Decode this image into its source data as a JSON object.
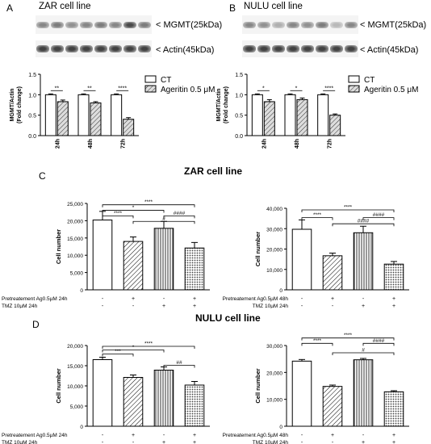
{
  "panels": {
    "A": {
      "letter": "A",
      "title": "ZAR cell line",
      "blot_labels": [
        "< MGMT(25kDa)",
        "< Actin(45kDa)"
      ],
      "mgmt_bands": [
        0.55,
        0.6,
        0.5,
        0.55,
        0.6,
        0.55,
        0.85,
        0.6
      ],
      "actin_bands": [
        0.9,
        0.9,
        0.9,
        0.9,
        0.9,
        0.9,
        0.9,
        0.9
      ]
    },
    "B": {
      "letter": "B",
      "title": "NULU cell line",
      "blot_labels": [
        "< MGMT(25kDa)",
        "< Actin(45kDa)"
      ],
      "mgmt_bands": [
        0.55,
        0.5,
        0.35,
        0.55,
        0.5,
        0.6,
        0.3,
        0.55
      ],
      "actin_bands": [
        0.9,
        0.9,
        0.9,
        0.9,
        0.9,
        0.9,
        0.9,
        0.9
      ]
    },
    "C": {
      "letter": "C",
      "title": "ZAR cell line"
    },
    "D": {
      "letter": "D",
      "title": "NULU cell line"
    }
  },
  "colors": {
    "bar_fill": "#ffffff",
    "stroke": "#000000",
    "dot_fill": "#444444"
  },
  "chart_data": [
    {
      "id": "A-chart",
      "type": "bar",
      "xlabel": "",
      "ylabel": "MGMT/Actin (Fold change)",
      "categories": [
        "24h",
        "48h",
        "72h"
      ],
      "series": [
        {
          "name": "CT",
          "pattern": "open",
          "values": [
            1.0,
            1.0,
            1.0
          ],
          "errors": [
            0.02,
            0.02,
            0.02
          ]
        },
        {
          "name": "Ageritin 0.5 μM",
          "pattern": "hatch",
          "values": [
            0.83,
            0.8,
            0.4
          ],
          "errors": [
            0.04,
            0.03,
            0.04
          ]
        }
      ],
      "ylim": [
        0,
        1.5
      ],
      "yticks": [
        0.0,
        0.5,
        1.0,
        1.5
      ],
      "ytick_labels": [
        "0.0",
        "0.5",
        "1.0",
        "1.5"
      ],
      "significance": [
        {
          "i": 0,
          "label": "**"
        },
        {
          "i": 1,
          "label": "**"
        },
        {
          "i": 2,
          "label": "****"
        }
      ],
      "legend": "top-right"
    },
    {
      "id": "B-chart",
      "type": "bar",
      "xlabel": "",
      "ylabel": "MGMT/Actin (Fold change)",
      "categories": [
        "24h",
        "48h",
        "72h"
      ],
      "series": [
        {
          "name": "CT",
          "pattern": "open",
          "values": [
            1.0,
            1.0,
            1.0
          ],
          "errors": [
            0.02,
            0.02,
            0.02
          ]
        },
        {
          "name": "Ageritin 0.5 μM",
          "pattern": "hatch",
          "values": [
            0.83,
            0.88,
            0.5
          ],
          "errors": [
            0.05,
            0.04,
            0.03
          ]
        }
      ],
      "ylim": [
        0,
        1.5
      ],
      "yticks": [
        0.0,
        0.5,
        1.0,
        1.5
      ],
      "ytick_labels": [
        "0.0",
        "0.5",
        "1.0",
        "1.5"
      ],
      "significance": [
        {
          "i": 0,
          "label": "*"
        },
        {
          "i": 1,
          "label": "*"
        },
        {
          "i": 2,
          "label": "****"
        }
      ],
      "legend": "top-right"
    },
    {
      "id": "C-left",
      "type": "bar",
      "xlabel": "",
      "ylabel": "Cell number",
      "values": [
        20200,
        14000,
        17800,
        12100
      ],
      "errors": [
        2500,
        1300,
        2000,
        1600
      ],
      "patterns": [
        "open",
        "diag-right",
        "vertical",
        "dots"
      ],
      "ylim": [
        0,
        25000
      ],
      "yticks": [
        0,
        5000,
        10000,
        15000,
        20000,
        25000
      ],
      "ytick_labels": [
        "0",
        "5,000",
        "10,000",
        "15,000",
        "20,000",
        "25,000"
      ],
      "conditions": [
        {
          "label": "Pretreatement Ag0.5µM 24h",
          "marks": [
            "-",
            "+",
            "-",
            "+"
          ]
        },
        {
          "label": "TMZ 10µM  24h",
          "marks": [
            "-",
            "-",
            "+",
            "+"
          ]
        }
      ],
      "brackets": [
        {
          "from": 0,
          "to": 3,
          "y": 24600,
          "label": "****"
        },
        {
          "from": 0,
          "to": 2,
          "y": 23000,
          "label": "*"
        },
        {
          "from": 0,
          "to": 1,
          "y": 21400,
          "label": "****"
        },
        {
          "from": 2,
          "to": 3,
          "y": 21400,
          "label": "####"
        },
        {
          "from": 1,
          "to": 3,
          "y": 19800,
          "label": "#"
        }
      ]
    },
    {
      "id": "C-right",
      "type": "bar",
      "xlabel": "",
      "ylabel": "Cell number",
      "values": [
        29700,
        16700,
        28000,
        12600
      ],
      "errors": [
        4600,
        1300,
        3200,
        1300
      ],
      "patterns": [
        "open",
        "diag-right",
        "vertical",
        "dots"
      ],
      "ylim": [
        0,
        40000
      ],
      "yticks": [
        0,
        10000,
        20000,
        30000,
        40000
      ],
      "ytick_labels": [
        "0",
        "10,000",
        "20,000",
        "30,000",
        "40,000"
      ],
      "conditions": [
        {
          "label": "Pretreatement Ag0.5µM 48h",
          "marks": [
            "-",
            "+",
            "-",
            "+"
          ]
        },
        {
          "label": "TMZ 10µM  24h",
          "marks": [
            "-",
            "-",
            "+",
            "+"
          ]
        }
      ],
      "brackets": [
        {
          "from": 0,
          "to": 3,
          "y": 39200,
          "label": "****"
        },
        {
          "from": 0,
          "to": 1,
          "y": 35400,
          "label": "****"
        },
        {
          "from": 2,
          "to": 3,
          "y": 35400,
          "label": "####"
        },
        {
          "from": 1,
          "to": 3,
          "y": 32400,
          "label": "####"
        }
      ]
    },
    {
      "id": "D-left",
      "type": "bar",
      "xlabel": "",
      "ylabel": "Cell number",
      "values": [
        16500,
        12100,
        13900,
        10200
      ],
      "errors": [
        600,
        600,
        800,
        900
      ],
      "patterns": [
        "open",
        "diag-right",
        "vertical",
        "dots"
      ],
      "ylim": [
        0,
        20000
      ],
      "yticks": [
        0,
        5000,
        10000,
        15000,
        20000
      ],
      "ytick_labels": [
        "0",
        "5,000",
        "10,000",
        "15,000",
        "20,000"
      ],
      "conditions": [
        {
          "label": "Pretreatement Ag0.5µM 24h",
          "marks": [
            "-",
            "+",
            "-",
            "+"
          ]
        },
        {
          "label": "TMZ 10µM  24h",
          "marks": [
            "-",
            "-",
            "+",
            "+"
          ]
        }
      ],
      "brackets": [
        {
          "from": 0,
          "to": 3,
          "y": 19800,
          "label": "****"
        },
        {
          "from": 0,
          "to": 2,
          "y": 18900,
          "label": "*"
        },
        {
          "from": 0,
          "to": 1,
          "y": 17900,
          "label": "***"
        },
        {
          "from": 2,
          "to": 3,
          "y": 15100,
          "label": "##"
        }
      ]
    },
    {
      "id": "D-right",
      "type": "bar",
      "xlabel": "",
      "ylabel": "Cell number",
      "values": [
        24200,
        14800,
        24700,
        12800
      ],
      "errors": [
        600,
        500,
        500,
        400
      ],
      "patterns": [
        "open",
        "diag-right",
        "vertical",
        "dots"
      ],
      "ylim": [
        0,
        30000
      ],
      "yticks": [
        0,
        10000,
        20000,
        30000
      ],
      "ytick_labels": [
        "0",
        "10,000",
        "20,000",
        "30,000"
      ],
      "conditions": [
        {
          "label": "Pretreatement Ag0.5µM 48h",
          "marks": [
            "-",
            "+",
            "-",
            "+"
          ]
        },
        {
          "label": "TMZ 10µM  24h",
          "marks": [
            "-",
            "-",
            "+",
            "+"
          ]
        }
      ],
      "brackets": [
        {
          "from": 0,
          "to": 3,
          "y": 32800,
          "label": "****"
        },
        {
          "from": 0,
          "to": 1,
          "y": 30800,
          "label": "****"
        },
        {
          "from": 2,
          "to": 3,
          "y": 30800,
          "label": "####"
        },
        {
          "from": 1,
          "to": 3,
          "y": 27300,
          "label": "#"
        }
      ]
    }
  ]
}
